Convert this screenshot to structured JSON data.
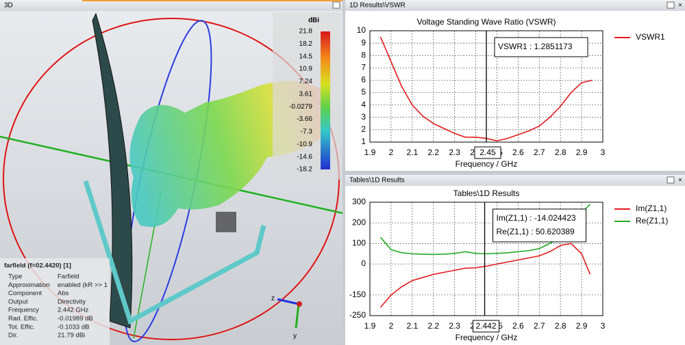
{
  "panels": {
    "left_title": "3D",
    "vswr_title": "1D Results\\VSWR",
    "tables_title": "Tables\\1D Results",
    "colorbar": {
      "unit": "dBi",
      "labels": [
        "21.8",
        "18.2",
        "14.5",
        "10.9",
        "7.24",
        "3.61",
        "-0.0279",
        "-3.66",
        "-7.3",
        "-10.9",
        "-14.6",
        "-18.2"
      ]
    },
    "info": {
      "heading": "farfield (f=02.4420) [1]",
      "rows": [
        [
          "Type",
          "Farfield"
        ],
        [
          "Approximation",
          "enabled (kR >> 1"
        ],
        [
          "Component",
          "Abs"
        ],
        [
          "Output",
          "Directivity"
        ],
        [
          "Frequency",
          "2.442 GHz"
        ],
        [
          "Rad. Effic.",
          "-0.01989 dB"
        ],
        [
          "Tot. Effic.",
          "-0.1033 dB"
        ],
        [
          "Dir.",
          "21.79 dBi"
        ]
      ]
    },
    "axes3d": {
      "z": "z",
      "y": "y"
    }
  },
  "chart_data": [
    {
      "type": "line",
      "title": "Voltage Standing Wave Ratio (VSWR)",
      "xlabel": "Frequency / GHz",
      "x": [
        1.95,
        2.0,
        2.05,
        2.1,
        2.15,
        2.2,
        2.25,
        2.3,
        2.35,
        2.4,
        2.45,
        2.5,
        2.55,
        2.6,
        2.65,
        2.7,
        2.75,
        2.8,
        2.85,
        2.9,
        2.95
      ],
      "series": [
        {
          "name": "VSWR1",
          "color": "#e31a1c",
          "values": [
            9.5,
            7.5,
            5.5,
            4.0,
            3.1,
            2.5,
            2.1,
            1.7,
            1.4,
            1.4,
            1.3,
            1.1,
            1.3,
            1.6,
            1.9,
            2.3,
            3.0,
            3.9,
            5.0,
            5.8,
            6.0
          ]
        }
      ],
      "xlim": [
        1.9,
        3
      ],
      "ylim": [
        1,
        10
      ],
      "xticks": [
        1.9,
        2,
        2.1,
        2.2,
        2.3,
        2.4,
        2.5,
        2.6,
        2.7,
        2.8,
        2.9,
        3
      ],
      "yticks": [
        1,
        2,
        3,
        4,
        5,
        6,
        7,
        8,
        9,
        10
      ],
      "grid": true,
      "legend": "right",
      "marker_x": 2.45,
      "annotations": [
        {
          "text": "VSWR1 : 1.2851173",
          "color": "#e31a1c"
        }
      ]
    },
    {
      "type": "line",
      "title": "Tables\\1D Results",
      "xlabel": "Frequency / GHz",
      "x": [
        1.95,
        2.0,
        2.05,
        2.1,
        2.15,
        2.2,
        2.25,
        2.3,
        2.35,
        2.4,
        2.45,
        2.5,
        2.55,
        2.6,
        2.65,
        2.7,
        2.75,
        2.8,
        2.85,
        2.9,
        2.94
      ],
      "series": [
        {
          "name": "Im(Z1,1)",
          "color": "#e31a1c",
          "values": [
            -210,
            -150,
            -110,
            -80,
            -65,
            -50,
            -40,
            -30,
            -20,
            -18,
            -10,
            0,
            10,
            20,
            30,
            40,
            60,
            90,
            100,
            50,
            -50
          ]
        },
        {
          "name": "Re(Z1,1)",
          "color": "#22aa22",
          "values": [
            130,
            70,
            55,
            50,
            48,
            47,
            48,
            52,
            60,
            52,
            50,
            52,
            55,
            60,
            65,
            75,
            100,
            130,
            180,
            250,
            290
          ]
        }
      ],
      "xlim": [
        1.9,
        3
      ],
      "ylim": [
        -250,
        300
      ],
      "xticks": [
        1.9,
        2,
        2.1,
        2.2,
        2.3,
        2.4,
        2.5,
        2.6,
        2.7,
        2.8,
        2.9,
        3
      ],
      "yticks": [
        -250,
        -150,
        0,
        100,
        200,
        300
      ],
      "grid": true,
      "legend": "right",
      "marker_x": 2.442,
      "annotations": [
        {
          "text": "Im(Z1,1) : -14.024423",
          "color": "#e31a1c"
        },
        {
          "text": "Re(Z1,1) : 50.620389",
          "color": "#22aa22"
        }
      ]
    }
  ]
}
